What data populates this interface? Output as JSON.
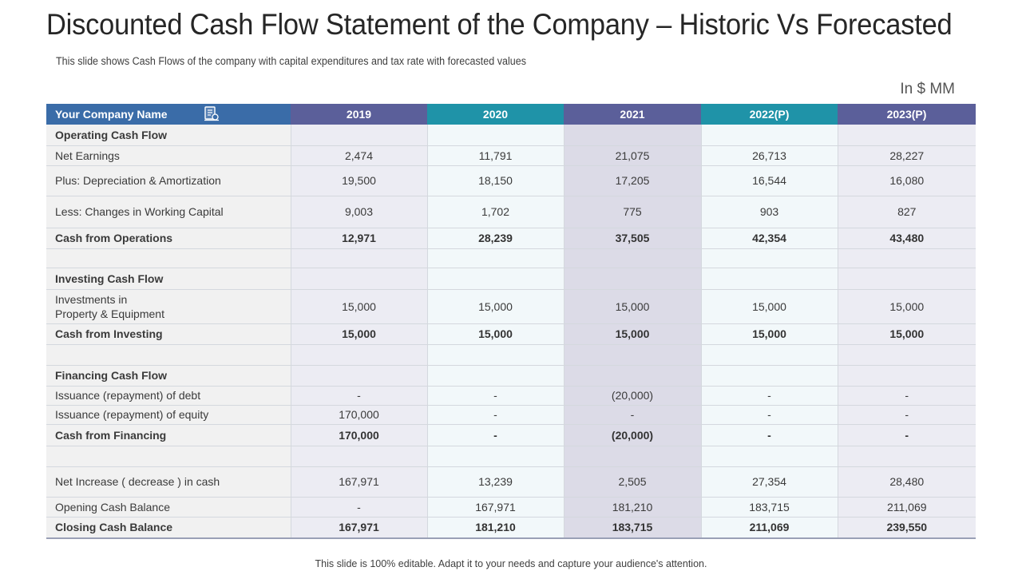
{
  "title": "Discounted Cash Flow Statement of the Company – Historic Vs Forecasted",
  "subtitle": "This slide shows Cash Flows of the company with capital expenditures and tax rate with forecasted values",
  "units": "In $ MM",
  "footer": "This slide is 100% editable. Adapt it to your needs and capture your audience's attention.",
  "table": {
    "header": [
      "Your Company Name",
      "2019",
      "2020",
      "2021",
      "2022(P)",
      "2023(P)"
    ],
    "header_icon": "company-document-icon",
    "rows": [
      {
        "label": "Operating Cash Flow",
        "values": [
          "",
          "",
          "",
          "",
          ""
        ],
        "bold": true
      },
      {
        "label": "Net Earnings",
        "values": [
          "2,474",
          "11,791",
          "21,075",
          "26,713",
          "28,227"
        ],
        "bold": false
      },
      {
        "label": "Plus: Depreciation & Amortization",
        "values": [
          "19,500",
          "18,150",
          "17,205",
          "16,544",
          "16,080"
        ],
        "bold": false
      },
      {
        "label": "Less: Changes in Working Capital",
        "values": [
          "9,003",
          "1,702",
          "775",
          "903",
          "827"
        ],
        "bold": false
      },
      {
        "label": "Cash from Operations",
        "values": [
          "12,971",
          "28,239",
          "37,505",
          "42,354",
          "43,480"
        ],
        "bold": true
      },
      {
        "label": "",
        "values": [
          "",
          "",
          "",
          "",
          ""
        ],
        "bold": false
      },
      {
        "label": "Investing Cash Flow",
        "values": [
          "",
          "",
          "",
          "",
          ""
        ],
        "bold": true
      },
      {
        "label_lines": [
          "Investments in",
          "Property & Equipment"
        ],
        "values": [
          "15,000",
          "15,000",
          "15,000",
          "15,000",
          "15,000"
        ],
        "bold": false
      },
      {
        "label": "Cash from Investing",
        "values": [
          "15,000",
          "15,000",
          "15,000",
          "15,000",
          "15,000"
        ],
        "bold": true
      },
      {
        "label": "",
        "values": [
          "",
          "",
          "",
          "",
          ""
        ],
        "bold": false
      },
      {
        "label": "Financing Cash Flow",
        "values": [
          "",
          "",
          "",
          "",
          ""
        ],
        "bold": true
      },
      {
        "label": "Issuance (repayment) of debt",
        "values": [
          "-",
          "-",
          "(20,000)",
          "-",
          "-"
        ],
        "bold": false
      },
      {
        "label": "Issuance (repayment) of equity",
        "values": [
          "170,000",
          "-",
          "-",
          "-",
          "-"
        ],
        "bold": false
      },
      {
        "label": "Cash from Financing",
        "values": [
          "170,000",
          "-",
          "(20,000)",
          "-",
          "-"
        ],
        "bold": true
      },
      {
        "label": "",
        "values": [
          "",
          "",
          "",
          "",
          ""
        ],
        "bold": false
      },
      {
        "label": "Net Increase ( decrease ) in cash",
        "values": [
          "167,971",
          "13,239",
          "2,505",
          "27,354",
          "28,480"
        ],
        "bold": false
      },
      {
        "label": "Opening Cash Balance",
        "values": [
          "-",
          "167,971",
          "181,210",
          "183,715",
          "211,069"
        ],
        "bold": false
      },
      {
        "label": "Closing Cash Balance",
        "values": [
          "167,971",
          "181,210",
          "183,715",
          "211,069",
          "239,550"
        ],
        "bold": true
      }
    ]
  }
}
